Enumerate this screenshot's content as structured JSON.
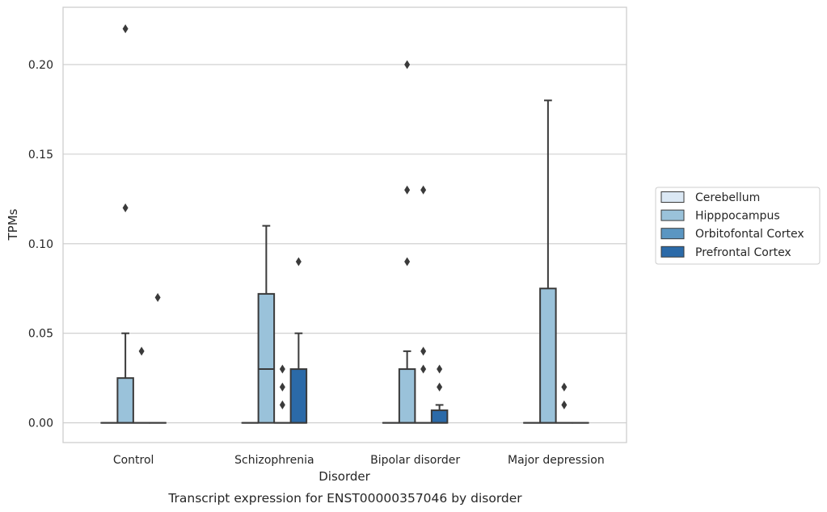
{
  "caption": "Transcript expression for ENST00000357046 by disorder",
  "chart_data": {
    "type": "box",
    "title": "",
    "xlabel": "Disorder",
    "ylabel": "TPMs",
    "ylim": [
      -0.011,
      0.232
    ],
    "yticks": [
      0.0,
      0.05,
      0.1,
      0.15,
      0.2
    ],
    "ytick_labels": [
      "0.00",
      "0.05",
      "0.10",
      "0.15",
      "0.20"
    ],
    "grid": "horizontal",
    "legend_position": "right",
    "categories": [
      "Control",
      "Schizophrenia",
      "Bipolar disorder",
      "Major depression"
    ],
    "series": [
      {
        "name": "Cerebellum",
        "color": "#dbe8f4",
        "boxes": [
          {
            "q1": 0,
            "median": 0,
            "q3": 0,
            "whisker_low": 0,
            "whisker_high": 0,
            "outliers": []
          },
          {
            "q1": 0,
            "median": 0,
            "q3": 0,
            "whisker_low": 0,
            "whisker_high": 0,
            "outliers": []
          },
          {
            "q1": 0,
            "median": 0,
            "q3": 0,
            "whisker_low": 0,
            "whisker_high": 0,
            "outliers": []
          },
          {
            "q1": 0,
            "median": 0,
            "q3": 0,
            "whisker_low": 0,
            "whisker_high": 0,
            "outliers": []
          }
        ]
      },
      {
        "name": "Hipppocampus",
        "color": "#9ac2da",
        "boxes": [
          {
            "q1": 0,
            "median": 0,
            "q3": 0.025,
            "whisker_low": 0,
            "whisker_high": 0.05,
            "outliers": [
              0.12,
              0.22
            ]
          },
          {
            "q1": 0,
            "median": 0.03,
            "q3": 0.072,
            "whisker_low": 0,
            "whisker_high": 0.11,
            "outliers": []
          },
          {
            "q1": 0,
            "median": 0,
            "q3": 0.03,
            "whisker_low": 0,
            "whisker_high": 0.04,
            "outliers": [
              0.09,
              0.13,
              0.2
            ]
          },
          {
            "q1": 0,
            "median": 0,
            "q3": 0.075,
            "whisker_low": 0,
            "whisker_high": 0.18,
            "outliers": []
          }
        ]
      },
      {
        "name": "Orbitofontal Cortex",
        "color": "#5b96c2",
        "boxes": [
          {
            "q1": 0,
            "median": 0,
            "q3": 0,
            "whisker_low": 0,
            "whisker_high": 0,
            "outliers": [
              0.04
            ]
          },
          {
            "q1": 0,
            "median": 0,
            "q3": 0,
            "whisker_low": 0,
            "whisker_high": 0,
            "outliers": [
              0.01,
              0.02,
              0.03
            ]
          },
          {
            "q1": 0,
            "median": 0,
            "q3": 0,
            "whisker_low": 0,
            "whisker_high": 0,
            "outliers": [
              0.03,
              0.04,
              0.13
            ]
          },
          {
            "q1": 0,
            "median": 0,
            "q3": 0,
            "whisker_low": 0,
            "whisker_high": 0,
            "outliers": [
              0.01,
              0.02
            ]
          }
        ]
      },
      {
        "name": "Prefrontal Cortex",
        "color": "#2b6aa8",
        "boxes": [
          {
            "q1": 0,
            "median": 0,
            "q3": 0,
            "whisker_low": 0,
            "whisker_high": 0,
            "outliers": [
              0.07
            ]
          },
          {
            "q1": 0,
            "median": 0,
            "q3": 0.03,
            "whisker_low": 0,
            "whisker_high": 0.05,
            "outliers": [
              0.09
            ]
          },
          {
            "q1": 0,
            "median": 0,
            "q3": 0.007,
            "whisker_low": 0,
            "whisker_high": 0.01,
            "outliers": [
              0.02,
              0.03
            ]
          },
          {
            "q1": 0,
            "median": 0,
            "q3": 0,
            "whisker_low": 0,
            "whisker_high": 0,
            "outliers": []
          }
        ]
      }
    ]
  }
}
